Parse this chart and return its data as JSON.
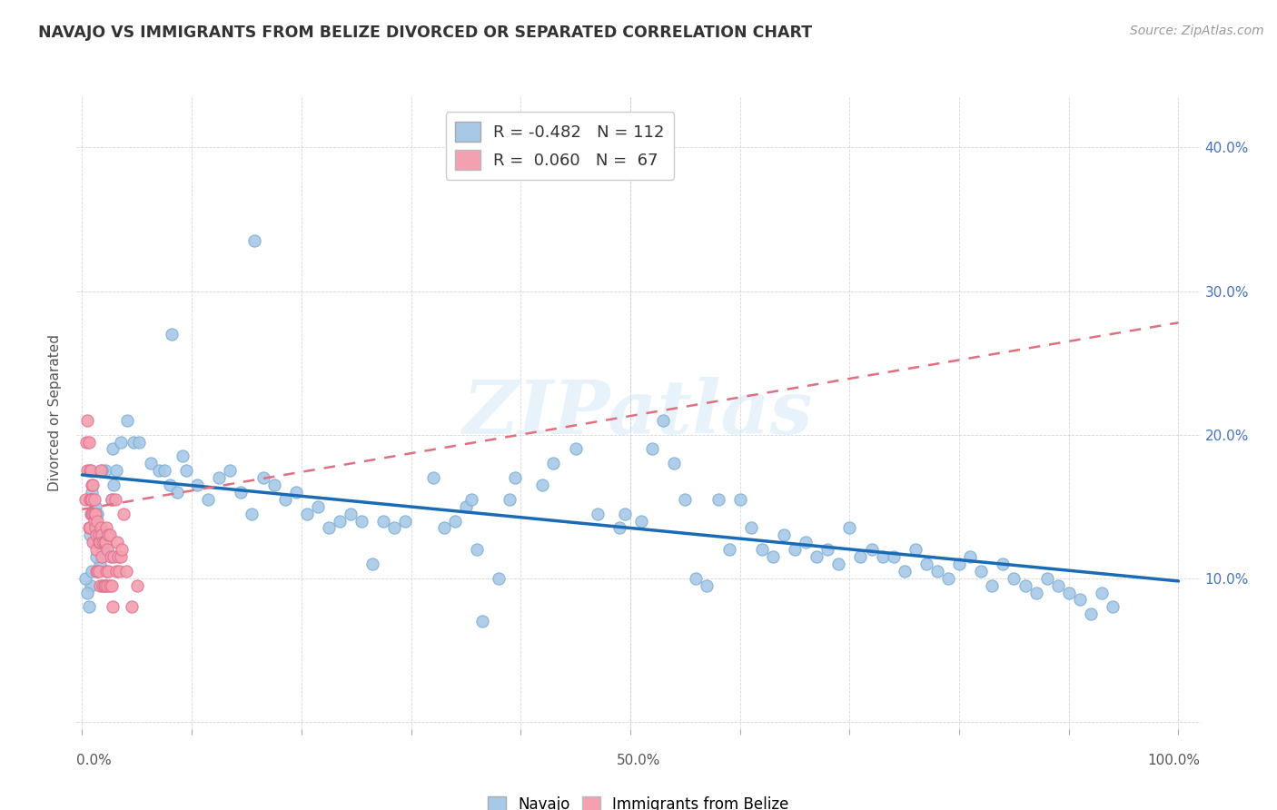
{
  "title": "NAVAJO VS IMMIGRANTS FROM BELIZE DIVORCED OR SEPARATED CORRELATION CHART",
  "source": "Source: ZipAtlas.com",
  "ylabel": "Divorced or Separated",
  "xlim": [
    -0.005,
    1.02
  ],
  "ylim": [
    -0.005,
    0.435
  ],
  "navajo_R": -0.482,
  "navajo_N": 112,
  "belize_R": 0.06,
  "belize_N": 67,
  "navajo_color": "#a8c8e8",
  "navajo_edge": "#7aaed0",
  "belize_color": "#f4a0b0",
  "belize_edge": "#e07090",
  "navajo_line_color": "#1a6bb5",
  "belize_line_color": "#e07080",
  "watermark": "ZIPatlas",
  "navajo_x": [
    0.021,
    0.157,
    0.082,
    0.047,
    0.092,
    0.031,
    0.029,
    0.009,
    0.018,
    0.012,
    0.027,
    0.014,
    0.007,
    0.011,
    0.006,
    0.008,
    0.003,
    0.009,
    0.005,
    0.016,
    0.013,
    0.019,
    0.028,
    0.035,
    0.041,
    0.052,
    0.063,
    0.07,
    0.075,
    0.08,
    0.087,
    0.095,
    0.105,
    0.115,
    0.125,
    0.135,
    0.145,
    0.155,
    0.165,
    0.175,
    0.185,
    0.195,
    0.205,
    0.215,
    0.225,
    0.235,
    0.245,
    0.255,
    0.265,
    0.275,
    0.285,
    0.295,
    0.32,
    0.33,
    0.34,
    0.35,
    0.355,
    0.36,
    0.365,
    0.38,
    0.39,
    0.395,
    0.42,
    0.43,
    0.45,
    0.47,
    0.49,
    0.495,
    0.51,
    0.52,
    0.53,
    0.54,
    0.55,
    0.56,
    0.57,
    0.58,
    0.59,
    0.6,
    0.61,
    0.62,
    0.63,
    0.64,
    0.65,
    0.66,
    0.67,
    0.68,
    0.69,
    0.7,
    0.71,
    0.72,
    0.73,
    0.74,
    0.75,
    0.76,
    0.77,
    0.78,
    0.79,
    0.8,
    0.81,
    0.82,
    0.83,
    0.84,
    0.85,
    0.86,
    0.87,
    0.88,
    0.89,
    0.9,
    0.91,
    0.92,
    0.93,
    0.94
  ],
  "navajo_y": [
    0.175,
    0.335,
    0.27,
    0.195,
    0.185,
    0.175,
    0.165,
    0.16,
    0.175,
    0.15,
    0.155,
    0.145,
    0.13,
    0.125,
    0.08,
    0.095,
    0.1,
    0.105,
    0.09,
    0.11,
    0.115,
    0.12,
    0.19,
    0.195,
    0.21,
    0.195,
    0.18,
    0.175,
    0.175,
    0.165,
    0.16,
    0.175,
    0.165,
    0.155,
    0.17,
    0.175,
    0.16,
    0.145,
    0.17,
    0.165,
    0.155,
    0.16,
    0.145,
    0.15,
    0.135,
    0.14,
    0.145,
    0.14,
    0.11,
    0.14,
    0.135,
    0.14,
    0.17,
    0.135,
    0.14,
    0.15,
    0.155,
    0.12,
    0.07,
    0.1,
    0.155,
    0.17,
    0.165,
    0.18,
    0.19,
    0.145,
    0.135,
    0.145,
    0.14,
    0.19,
    0.21,
    0.18,
    0.155,
    0.1,
    0.095,
    0.155,
    0.12,
    0.155,
    0.135,
    0.12,
    0.115,
    0.13,
    0.12,
    0.125,
    0.115,
    0.12,
    0.11,
    0.135,
    0.115,
    0.12,
    0.115,
    0.115,
    0.105,
    0.12,
    0.11,
    0.105,
    0.1,
    0.11,
    0.115,
    0.105,
    0.095,
    0.11,
    0.1,
    0.095,
    0.09,
    0.1,
    0.095,
    0.09,
    0.085,
    0.075,
    0.09,
    0.08
  ],
  "belize_x": [
    0.003,
    0.004,
    0.005,
    0.005,
    0.006,
    0.006,
    0.007,
    0.007,
    0.007,
    0.008,
    0.008,
    0.008,
    0.009,
    0.009,
    0.009,
    0.01,
    0.01,
    0.01,
    0.011,
    0.011,
    0.011,
    0.012,
    0.012,
    0.013,
    0.013,
    0.013,
    0.014,
    0.014,
    0.015,
    0.015,
    0.015,
    0.016,
    0.016,
    0.017,
    0.017,
    0.018,
    0.018,
    0.019,
    0.019,
    0.02,
    0.02,
    0.021,
    0.021,
    0.022,
    0.022,
    0.023,
    0.023,
    0.024,
    0.024,
    0.025,
    0.025,
    0.026,
    0.027,
    0.027,
    0.028,
    0.029,
    0.03,
    0.031,
    0.032,
    0.033,
    0.034,
    0.035,
    0.036,
    0.038,
    0.04,
    0.045,
    0.05
  ],
  "belize_y": [
    0.155,
    0.195,
    0.21,
    0.175,
    0.195,
    0.135,
    0.175,
    0.155,
    0.135,
    0.175,
    0.155,
    0.145,
    0.165,
    0.155,
    0.145,
    0.145,
    0.165,
    0.125,
    0.14,
    0.155,
    0.145,
    0.135,
    0.145,
    0.12,
    0.105,
    0.13,
    0.14,
    0.105,
    0.13,
    0.125,
    0.105,
    0.125,
    0.095,
    0.175,
    0.135,
    0.13,
    0.115,
    0.125,
    0.095,
    0.125,
    0.095,
    0.125,
    0.095,
    0.135,
    0.105,
    0.12,
    0.095,
    0.13,
    0.105,
    0.13,
    0.095,
    0.115,
    0.155,
    0.095,
    0.08,
    0.115,
    0.155,
    0.105,
    0.125,
    0.115,
    0.105,
    0.115,
    0.12,
    0.145,
    0.105,
    0.08,
    0.095
  ],
  "navajo_line_x0": 0.0,
  "navajo_line_x1": 1.0,
  "navajo_line_y0": 0.172,
  "navajo_line_y1": 0.098,
  "belize_line_x0": 0.0,
  "belize_line_x1": 1.0,
  "belize_line_y0": 0.148,
  "belize_line_y1": 0.278
}
